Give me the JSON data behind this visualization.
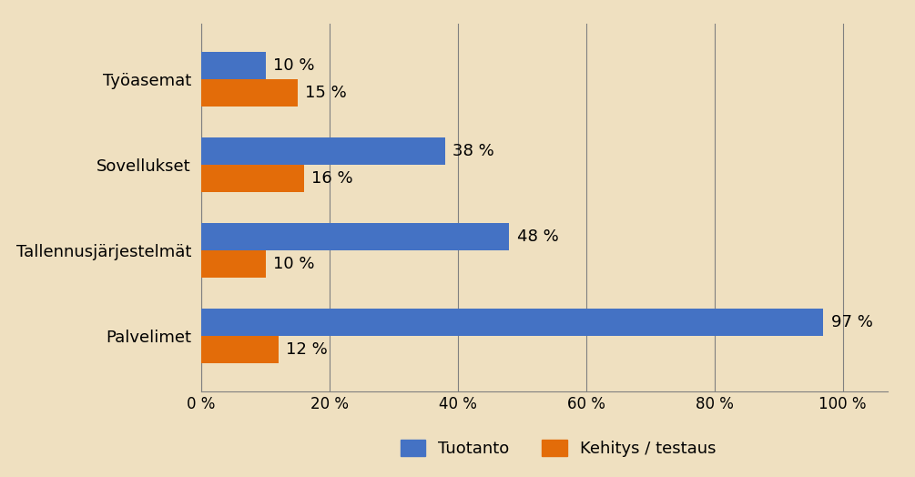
{
  "categories": [
    "Palvelimet",
    "Tallennusjärjestelmät",
    "Sovellukset",
    "Työasemat"
  ],
  "tuotanto": [
    97,
    48,
    38,
    10
  ],
  "kehitys": [
    12,
    10,
    16,
    15
  ],
  "tuotanto_color": "#4472C4",
  "kehitys_color": "#E36C09",
  "background_color": "#EFE0C0",
  "plot_bg_color": "#EFE0C0",
  "grid_color": "#808080",
  "xlim": [
    0,
    107
  ],
  "xticks": [
    0,
    20,
    40,
    60,
    80,
    100
  ],
  "xtick_labels": [
    "0 %",
    "20 %",
    "40 %",
    "60 %",
    "80 %",
    "100 %"
  ],
  "bar_height": 0.32,
  "bar_gap": 0.0,
  "legend_tuotanto": "Tuotanto",
  "legend_kehitys": "Kehitys / testaus",
  "label_fontsize": 13,
  "tick_fontsize": 12,
  "legend_fontsize": 13,
  "category_fontsize": 13
}
